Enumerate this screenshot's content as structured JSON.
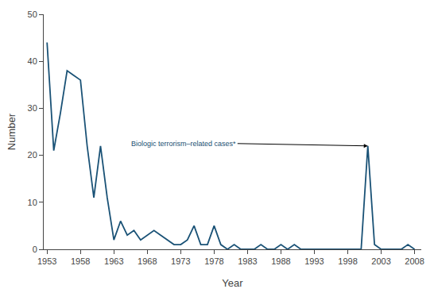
{
  "chart_data": {
    "type": "line",
    "x": [
      1953,
      1954,
      1955,
      1956,
      1957,
      1958,
      1959,
      1960,
      1961,
      1962,
      1963,
      1964,
      1965,
      1966,
      1967,
      1968,
      1969,
      1970,
      1971,
      1972,
      1973,
      1974,
      1975,
      1976,
      1977,
      1978,
      1979,
      1980,
      1981,
      1982,
      1983,
      1984,
      1985,
      1986,
      1987,
      1988,
      1989,
      1990,
      1991,
      1992,
      1993,
      1994,
      1995,
      1996,
      1997,
      1998,
      1999,
      2000,
      2001,
      2002,
      2003,
      2004,
      2005,
      2006,
      2007,
      2008
    ],
    "values": [
      44,
      21,
      29,
      38,
      37,
      36,
      22,
      11,
      22,
      11,
      2,
      6,
      3,
      4,
      2,
      3,
      4,
      3,
      2,
      1,
      1,
      2,
      5,
      1,
      1,
      5,
      1,
      0,
      1,
      0,
      0,
      0,
      1,
      0,
      0,
      1,
      0,
      1,
      0,
      0,
      0,
      0,
      0,
      0,
      0,
      0,
      0,
      0,
      22,
      1,
      0,
      0,
      0,
      0,
      1,
      0
    ],
    "color": "#1a5276",
    "xlabel": "Year",
    "ylabel": "Number",
    "xlim": [
      1952.5,
      2009
    ],
    "ylim": [
      0,
      50
    ],
    "xticks": [
      1953,
      1958,
      1963,
      1968,
      1973,
      1978,
      1983,
      1988,
      1993,
      1998,
      2003,
      2008
    ],
    "yticks": [
      0,
      10,
      20,
      30,
      40,
      50
    ],
    "grid": false,
    "annotations": [
      {
        "text": "Biologic terrorism–related cases*",
        "x": 2001,
        "y": 22,
        "text_x": 1981.5,
        "text_y": 22.5,
        "color": "#1a4f72"
      }
    ]
  }
}
